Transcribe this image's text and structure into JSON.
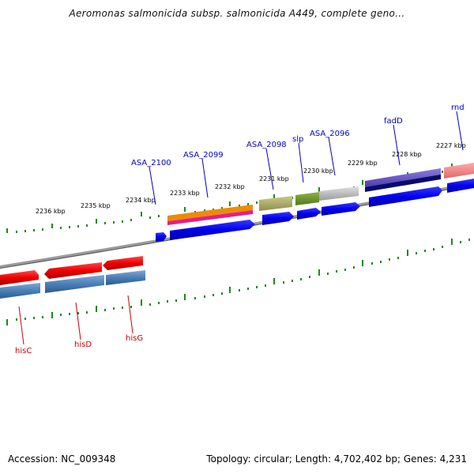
{
  "title": "Aeromonas salmonicida subsp. salmonicida A449, complete geno...",
  "footer": {
    "accession": "Accession: NC_009348",
    "summary": "Topology: circular; Length: 4,702,402 bp; Genes: 4,231"
  },
  "kbp_labels": [
    "2236 kbp",
    "2235 kbp",
    "2234 kbp",
    "2233 kbp",
    "2232 kbp",
    "2231 kbp",
    "2230 kbp",
    "2229 kbp",
    "2228 kbp",
    "2227 kbp"
  ],
  "gene_labels_top": [
    "ASA_2100",
    "ASA_2099",
    "ASA_2098",
    "slp",
    "ASA_2096",
    "fadD",
    "rnd"
  ],
  "gene_labels_bottom": [
    "hisC",
    "hisD",
    "hisG"
  ],
  "colors": {
    "label_top": "#0000cc",
    "label_bottom": "#cc0000",
    "tick": "#1a8a1a",
    "backbone": "#8a8a8a"
  }
}
